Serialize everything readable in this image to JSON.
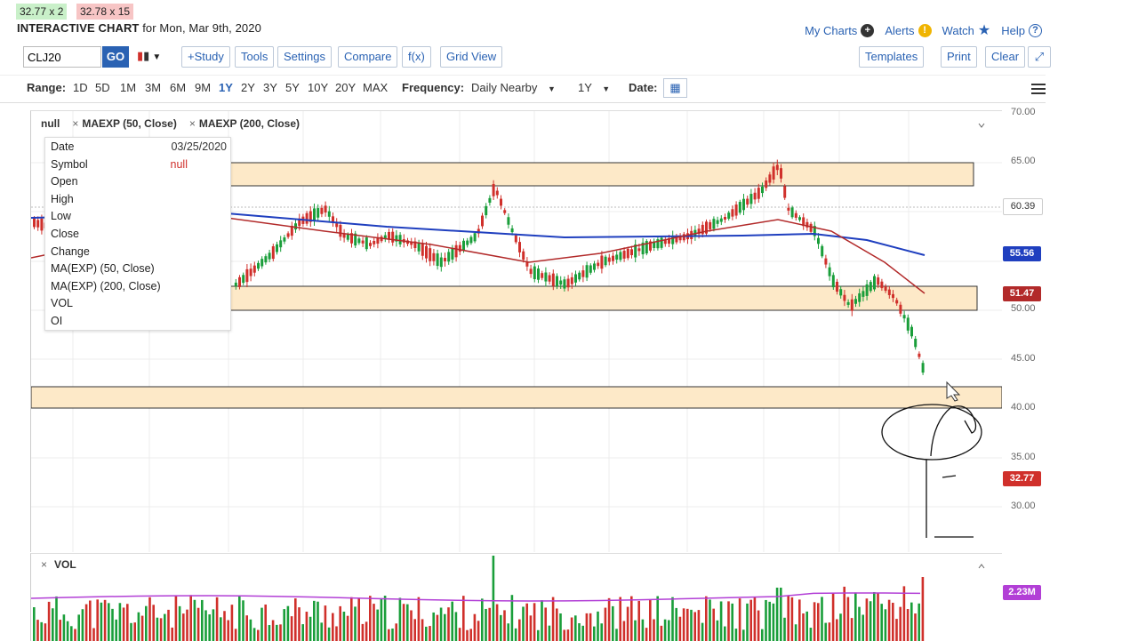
{
  "quotes": {
    "bid": "32.77 x 2",
    "ask": "32.78 x 15"
  },
  "header": {
    "title": "INTERACTIVE CHART",
    "subtitle": "for Mon, Mar 9th, 2020"
  },
  "toplinks": {
    "my_charts": "My Charts",
    "alerts": "Alerts",
    "watch": "Watch",
    "help": "Help"
  },
  "toolbar": {
    "symbol_value": "CLJ20",
    "go": "GO",
    "study": "+Study",
    "tools": "Tools",
    "settings": "Settings",
    "compare": "Compare",
    "fx": "f(x)",
    "grid_view": "Grid View",
    "templates": "Templates",
    "print": "Print",
    "clear": "Clear",
    "expand_icon": "expand-icon"
  },
  "rangebar": {
    "range_label": "Range:",
    "ranges": [
      "1D",
      "5D",
      "1M",
      "3M",
      "6M",
      "9M",
      "1Y",
      "2Y",
      "3Y",
      "5Y",
      "10Y",
      "20Y",
      "MAX"
    ],
    "active_range": "1Y",
    "frequency_label": "Frequency:",
    "frequency_value": "Daily Nearby",
    "period_value": "1Y",
    "date_label": "Date:"
  },
  "studies": {
    "symbol": "null",
    "ma50": "MAEXP (50, Close)",
    "ma200": "MAEXP (200, Close)"
  },
  "tooltip": {
    "rows": [
      "Date",
      "Symbol",
      "Open",
      "High",
      "Low",
      "Close",
      "Change",
      "MA(EXP) (50, Close)",
      "MA(EXP) (200, Close)",
      "VOL",
      "OI"
    ],
    "date_value": "03/25/2020",
    "symbol_value": "null"
  },
  "axis": {
    "y_labels": [
      "70.00",
      "65.00",
      "60.39",
      "55.56",
      "51.47",
      "50.00",
      "45.00",
      "40.00",
      "35.00",
      "32.77",
      "30.00"
    ],
    "tags": {
      "t6039": "60.39",
      "t5556": "55.56",
      "t5147": "51.47",
      "t3277": "32.77",
      "vol": "2.23M"
    }
  },
  "volume": {
    "label": "VOL"
  },
  "colors": {
    "accent": "#2a62b3",
    "up": "#1a9e3a",
    "down": "#d0302b",
    "ma50": "#b22a2a",
    "ma200": "#1f3fbf",
    "zone": "#fde9c8",
    "vol_ma": "#b23fd6"
  }
}
